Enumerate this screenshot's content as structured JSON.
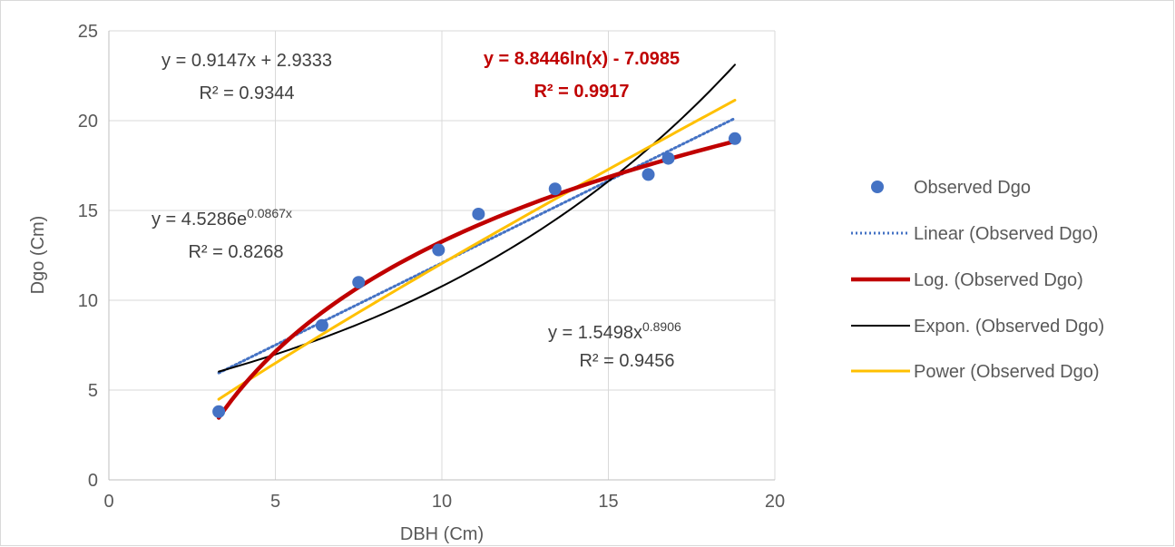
{
  "chart_data": {
    "type": "scatter",
    "xlabel": "DBH (Cm)",
    "ylabel": "Dgo (Cm)",
    "xlim": [
      0,
      20
    ],
    "ylim": [
      0,
      25
    ],
    "xticks": [
      0,
      5,
      10,
      15,
      20
    ],
    "yticks": [
      0,
      5,
      10,
      15,
      20,
      25
    ],
    "grid": "horizontal and vertical major gridlines",
    "legend_position": "right",
    "observed": {
      "name": "Observed Dgo",
      "color": "#4472C4",
      "x": [
        3.3,
        6.4,
        7.5,
        9.9,
        11.1,
        13.4,
        16.2,
        16.8,
        18.8
      ],
      "y": [
        3.8,
        8.6,
        11.0,
        12.8,
        14.8,
        16.2,
        17.0,
        17.9,
        19.0
      ]
    },
    "trendlines": [
      {
        "key": "linear",
        "name": "Linear (Observed Dgo)",
        "model": "linear",
        "a": 0.9147,
        "b": 2.9333,
        "x_range": [
          3.3,
          18.8
        ],
        "color": "#4472C4",
        "style": "dotted",
        "equation": "y = 0.9147x + 2.9333",
        "r2": "R² = 0.9344"
      },
      {
        "key": "log",
        "name": "Log. (Observed Dgo)",
        "model": "log",
        "a": 8.8446,
        "b": -7.0985,
        "x_range": [
          3.3,
          18.8
        ],
        "color": "#C00000",
        "style": "thick",
        "equation": "y = 8.8446ln(x) - 7.0985",
        "r2": "R² = 0.9917"
      },
      {
        "key": "expon",
        "name": "Expon. (Observed Dgo)",
        "model": "exp",
        "a": 4.5286,
        "b": 0.0867,
        "x_range": [
          3.3,
          18.8
        ],
        "color": "#000000",
        "style": "thin",
        "equation_base": "y = 4.5286e",
        "equation_exp": "0.0867x",
        "r2": "R² = 0.8268"
      },
      {
        "key": "power",
        "name": "Power (Observed Dgo)",
        "model": "power",
        "a": 1.5498,
        "b": 0.8906,
        "x_range": [
          3.3,
          18.8
        ],
        "color": "#FFC000",
        "style": "solid",
        "equation_base": "y = 1.5498x",
        "equation_exp": "0.8906",
        "r2": "R² = 0.9456"
      }
    ]
  }
}
